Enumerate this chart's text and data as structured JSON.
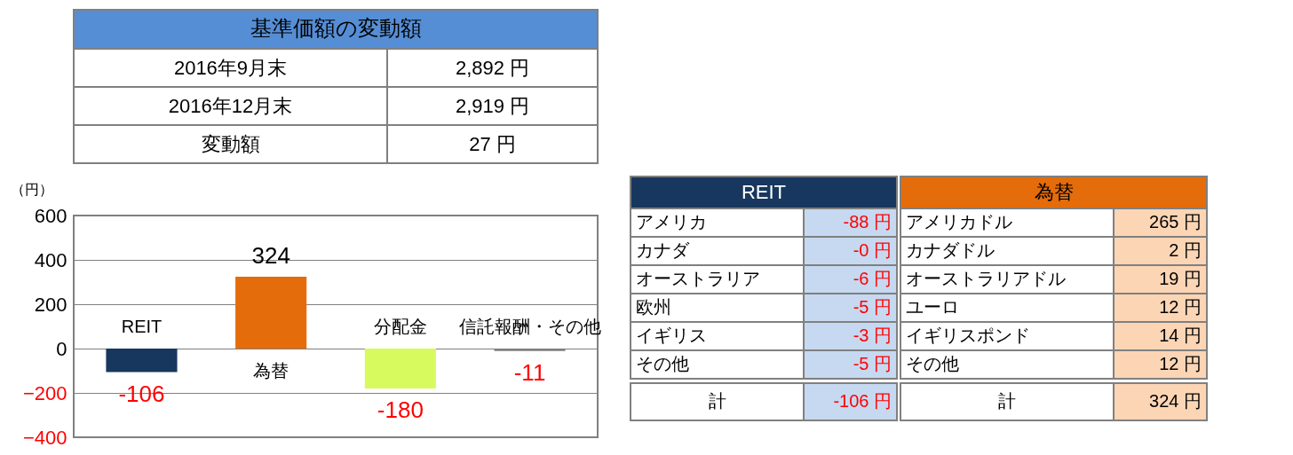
{
  "chart_data": [
    {
      "type": "other",
      "title": "基準価額の変動額",
      "categories": [
        "2016年9月末",
        "2016年12月末",
        "変動額"
      ],
      "values": [
        2892,
        2919,
        27
      ],
      "value_labels": [
        "2,892 円",
        "2,919 円",
        "27 円"
      ]
    },
    {
      "type": "bar",
      "ylabel": "（円）",
      "categories": [
        "REIT",
        "為替",
        "分配金",
        "信託報酬・その他"
      ],
      "values": [
        -106,
        324,
        -180,
        -11
      ],
      "colors": [
        "#17375e",
        "#e46c0a",
        "#d7fa5f",
        "#7f7f7f"
      ],
      "ylim": [
        -400,
        600
      ],
      "yticks": [
        -400,
        -200,
        0,
        200,
        400,
        600
      ],
      "grid": "y",
      "data_labels": true,
      "tick_labels": "y"
    },
    {
      "type": "other",
      "title": "REIT",
      "categories": [
        "アメリカ",
        "カナダ",
        "オーストラリア",
        "欧州",
        "イギリス",
        "その他"
      ],
      "values": [
        -88,
        -0.0,
        -6,
        -5,
        -3,
        -5
      ],
      "value_labels": [
        "-88 円",
        "-0 円",
        "-6 円",
        "-5 円",
        "-3 円",
        "-5 円"
      ],
      "annotations": [
        "計"
      ],
      "totals": [
        "-106 円"
      ]
    },
    {
      "type": "other",
      "title": "為替",
      "categories": [
        "アメリカドル",
        "カナダドル",
        "オーストラリアドル",
        "ユーロ",
        "イギリスポンド",
        "その他"
      ],
      "values": [
        265,
        2,
        19,
        12,
        14,
        12
      ],
      "value_labels": [
        "265 円",
        "2 円",
        "19 円",
        "12 円",
        "14 円",
        "12 円"
      ],
      "annotations": [
        "計"
      ],
      "totals": [
        "324 円"
      ]
    }
  ]
}
